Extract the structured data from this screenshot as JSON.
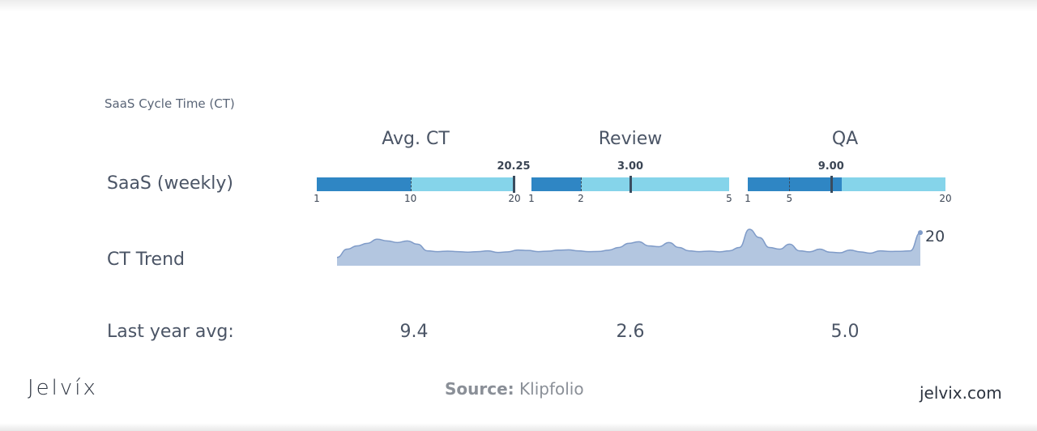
{
  "subtitle": "SaaS Cycle Time (CT)",
  "row_labels": {
    "weekly": "SaaS (weekly)",
    "trend": "CT  Trend",
    "last_year": "Last year avg:"
  },
  "chart_data": {
    "type": "bullet",
    "columns": [
      {
        "title": "Avg. CT",
        "value": 20.25,
        "value_label": "20.25",
        "min": 1,
        "max": 20,
        "fill_to": 10,
        "marker": 20,
        "ticks": [
          "1",
          "10",
          "20"
        ],
        "tick_values": [
          1,
          10,
          20
        ],
        "last_year_avg": "9.4"
      },
      {
        "title": "Review",
        "value": 3.0,
        "value_label": "3.00",
        "min": 1,
        "max": 5,
        "fill_to": 2,
        "marker": 3.0,
        "ticks": [
          "1",
          "2",
          "5"
        ],
        "tick_values": [
          1,
          2,
          5
        ],
        "last_year_avg": "2.6"
      },
      {
        "title": "QA",
        "value": 9.0,
        "value_label": "9.00",
        "min": 1,
        "max": 20,
        "fill_to": 10,
        "marker": 9.0,
        "ticks": [
          "1",
          "5",
          "20"
        ],
        "tick_values": [
          1,
          5,
          20
        ],
        "last_year_avg": "5.0"
      }
    ],
    "trend": {
      "type": "area",
      "end_label": "20",
      "values": [
        5,
        10,
        12,
        13.5,
        16,
        15,
        14,
        15,
        13,
        9,
        8.5,
        8.8,
        8.5,
        8.2,
        8.5,
        9,
        8,
        8.4,
        9.5,
        9.2,
        8.5,
        8.8,
        9.4,
        9.6,
        9,
        8.5,
        8.6,
        9.4,
        11,
        13.5,
        14.5,
        12,
        11.5,
        14,
        11,
        9,
        8.5,
        8.8,
        8.4,
        9,
        11,
        22,
        17,
        11,
        10,
        13,
        9,
        8.4,
        10,
        8.2,
        7.8,
        9.5,
        8.4,
        7.6,
        9,
        8.6,
        8.7,
        9,
        20
      ]
    }
  },
  "colors": {
    "fill": "#2f86c4",
    "range": "#85d4ea",
    "trend_fill": "#b3c6e0",
    "trend_stroke": "#7f9bc8"
  },
  "footer": {
    "brand": "Jelvíx",
    "source_label": "Source:",
    "source_value": "Klipfolio",
    "site": "jelvix.com"
  }
}
